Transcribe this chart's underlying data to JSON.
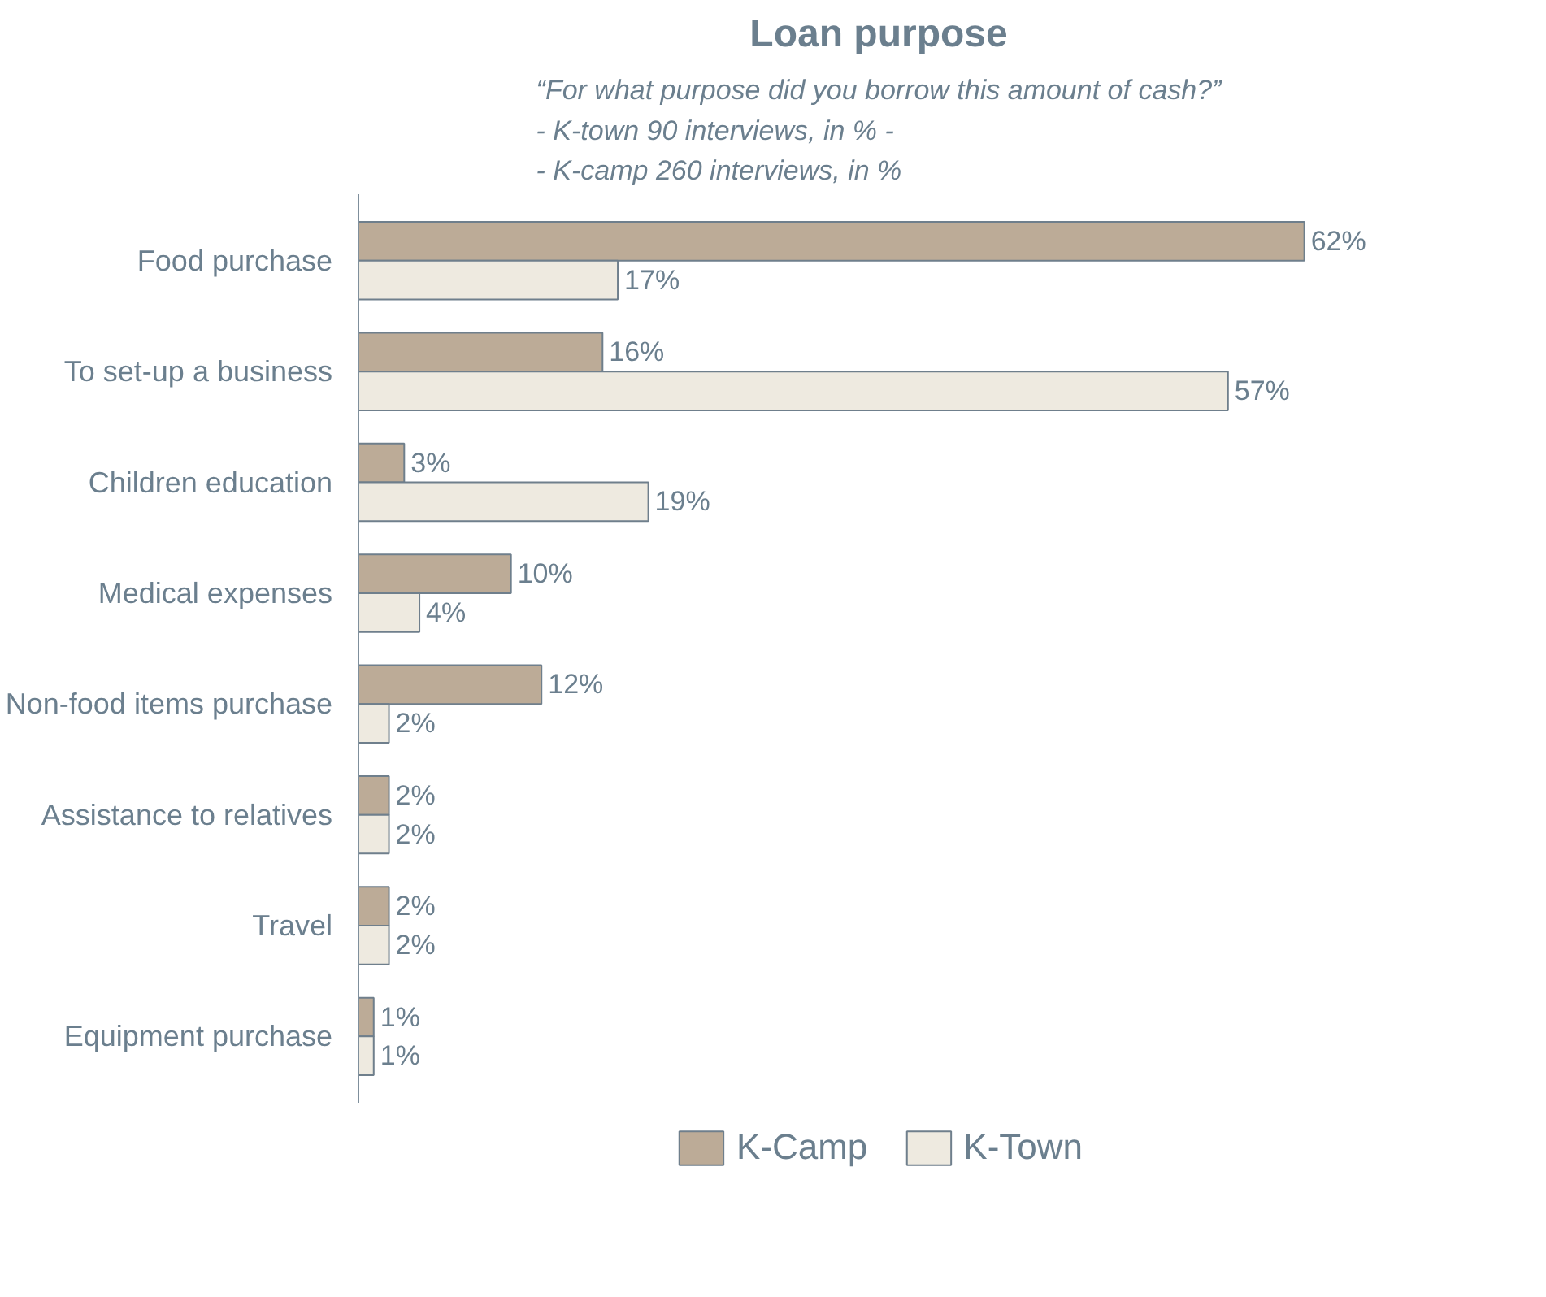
{
  "chart_data": {
    "type": "bar",
    "orientation": "horizontal",
    "title": "Loan purpose",
    "subtitle": "“For what purpose did you borrow this amount of cash?”\n- K-town 90 interviews, in % -\n- K-camp 260 interviews, in %",
    "categories": [
      "Food purchase",
      "To set-up a business",
      "Children education",
      "Medical expenses",
      "Non-food items purchase",
      "Assistance to relatives",
      "Travel",
      "Equipment purchase"
    ],
    "series": [
      {
        "name": "K-Camp",
        "color": "#bcab97",
        "values": [
          62,
          16,
          3,
          10,
          12,
          2,
          2,
          1
        ],
        "value_labels": [
          "62%",
          "16%",
          "3%",
          "10%",
          "12%",
          "2%",
          "2%",
          "1%"
        ]
      },
      {
        "name": "K-Town",
        "color": "#eeeae0",
        "values": [
          17,
          57,
          19,
          4,
          2,
          2,
          2,
          1
        ],
        "value_labels": [
          "17%",
          "57%",
          "19%",
          "4%",
          "2%",
          "2%",
          "2%",
          "1%"
        ]
      }
    ],
    "legend": "bottom",
    "grid": false,
    "tick_labels": "y"
  }
}
